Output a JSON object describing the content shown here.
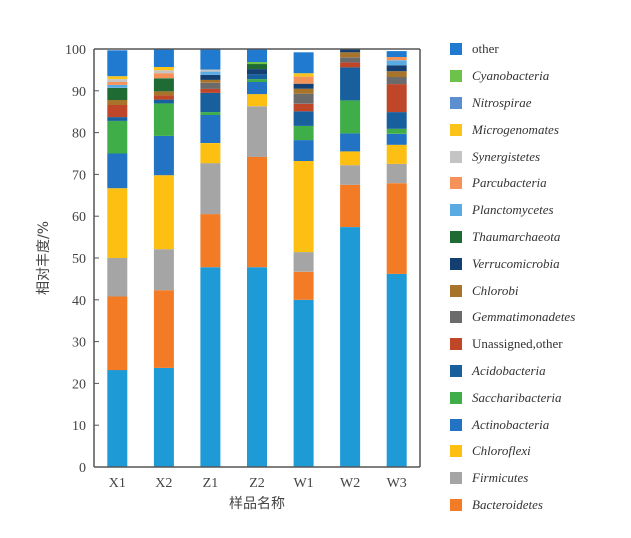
{
  "chart_data": {
    "type": "bar",
    "stacked": true,
    "title": "",
    "xlabel": "样品名称",
    "ylabel": "相对丰度/%",
    "ylim": [
      0,
      100
    ],
    "yticks": [
      0,
      10,
      20,
      30,
      40,
      50,
      60,
      70,
      80,
      90,
      100
    ],
    "categories": [
      "X1",
      "X2",
      "Z1",
      "Z2",
      "W1",
      "W2",
      "W3"
    ],
    "legend_position": "right",
    "series": [
      {
        "name": "",
        "color": "#1e9ad6",
        "in_legend": false,
        "values": [
          23.2,
          23.7,
          47.8,
          47.8,
          40.0,
          57.4,
          46.2
        ]
      },
      {
        "name": "Bacteroidetes",
        "color": "#f47b25",
        "italic": true,
        "values": [
          17.6,
          18.6,
          12.7,
          26.4,
          6.7,
          10.1,
          21.7
        ]
      },
      {
        "name": "Firmicutes",
        "color": "#a5a5a5",
        "italic": true,
        "values": [
          9.2,
          9.8,
          12.2,
          12.1,
          4.7,
          4.7,
          4.6
        ]
      },
      {
        "name": "Chloroflexi",
        "color": "#fdbf11",
        "italic": true,
        "values": [
          16.7,
          17.7,
          4.8,
          2.9,
          21.8,
          3.3,
          4.6
        ]
      },
      {
        "name": "Actinobacteria",
        "color": "#2273c4",
        "italic": true,
        "values": [
          8.3,
          9.4,
          6.7,
          2.9,
          5.0,
          4.3,
          2.6
        ]
      },
      {
        "name": "Saccharibacteria",
        "color": "#3fae49",
        "italic": true,
        "values": [
          7.8,
          7.8,
          0.7,
          0.7,
          3.4,
          7.9,
          1.2
        ]
      },
      {
        "name": "Acidobacteria",
        "color": "#185f9e",
        "italic": true,
        "values": [
          0.9,
          0.9,
          4.6,
          1.2,
          3.5,
          7.9,
          4.0
        ]
      },
      {
        "name": "Unassigned,other",
        "color": "#c0462a",
        "italic": false,
        "values": [
          2.9,
          1.0,
          1.0,
          0.0,
          1.8,
          1.2,
          6.7
        ]
      },
      {
        "name": "Gemmatimonadetes",
        "color": "#6b6b6b",
        "italic": true,
        "values": [
          0.0,
          0.0,
          1.4,
          0.0,
          2.4,
          1.2,
          1.7
        ]
      },
      {
        "name": "Chlorobi",
        "color": "#a8732a",
        "italic": true,
        "values": [
          1.2,
          1.0,
          0.7,
          0.0,
          1.2,
          1.2,
          1.4
        ]
      },
      {
        "name": "Verrucomicrobia",
        "color": "#133f73",
        "italic": true,
        "values": [
          0.0,
          0.0,
          1.2,
          1.2,
          1.2,
          1.2,
          1.4
        ]
      },
      {
        "name": "Thaumarchaeota",
        "color": "#1f6b34",
        "italic": true,
        "values": [
          2.9,
          3.1,
          0.0,
          1.2,
          0.0,
          0.0,
          0.0
        ]
      },
      {
        "name": "Planctomycetes",
        "color": "#5aabe3",
        "italic": true,
        "values": [
          0.7,
          0.0,
          0.8,
          0.0,
          0.0,
          0.7,
          1.2
        ]
      },
      {
        "name": "Parcubacteria",
        "color": "#f5925a",
        "italic": true,
        "values": [
          0.7,
          1.2,
          0.0,
          0.0,
          1.7,
          0.0,
          0.8
        ]
      },
      {
        "name": "Synergistetes",
        "color": "#c4c4c4",
        "italic": true,
        "values": [
          0.7,
          0.7,
          0.5,
          0.0,
          0.0,
          0.0,
          0.0
        ]
      },
      {
        "name": "Microgenomates",
        "color": "#fcc419",
        "italic": true,
        "values": [
          0.7,
          0.8,
          0.0,
          0.0,
          0.8,
          0.0,
          0.0
        ]
      },
      {
        "name": "Nitrospirae",
        "color": "#5b8fd0",
        "italic": true,
        "values": [
          0.0,
          0.0,
          0.0,
          0.0,
          0.0,
          0.0,
          0.0
        ]
      },
      {
        "name": "Cyanobacteria",
        "color": "#6cc24a",
        "italic": true,
        "values": [
          0.0,
          0.0,
          0.0,
          0.5,
          0.0,
          0.0,
          0.0
        ]
      },
      {
        "name": "other",
        "color": "#1f7ad0",
        "italic": false,
        "values": [
          6.2,
          5.0,
          5.7,
          4.3,
          5.0,
          2.6,
          1.4
        ]
      }
    ]
  }
}
